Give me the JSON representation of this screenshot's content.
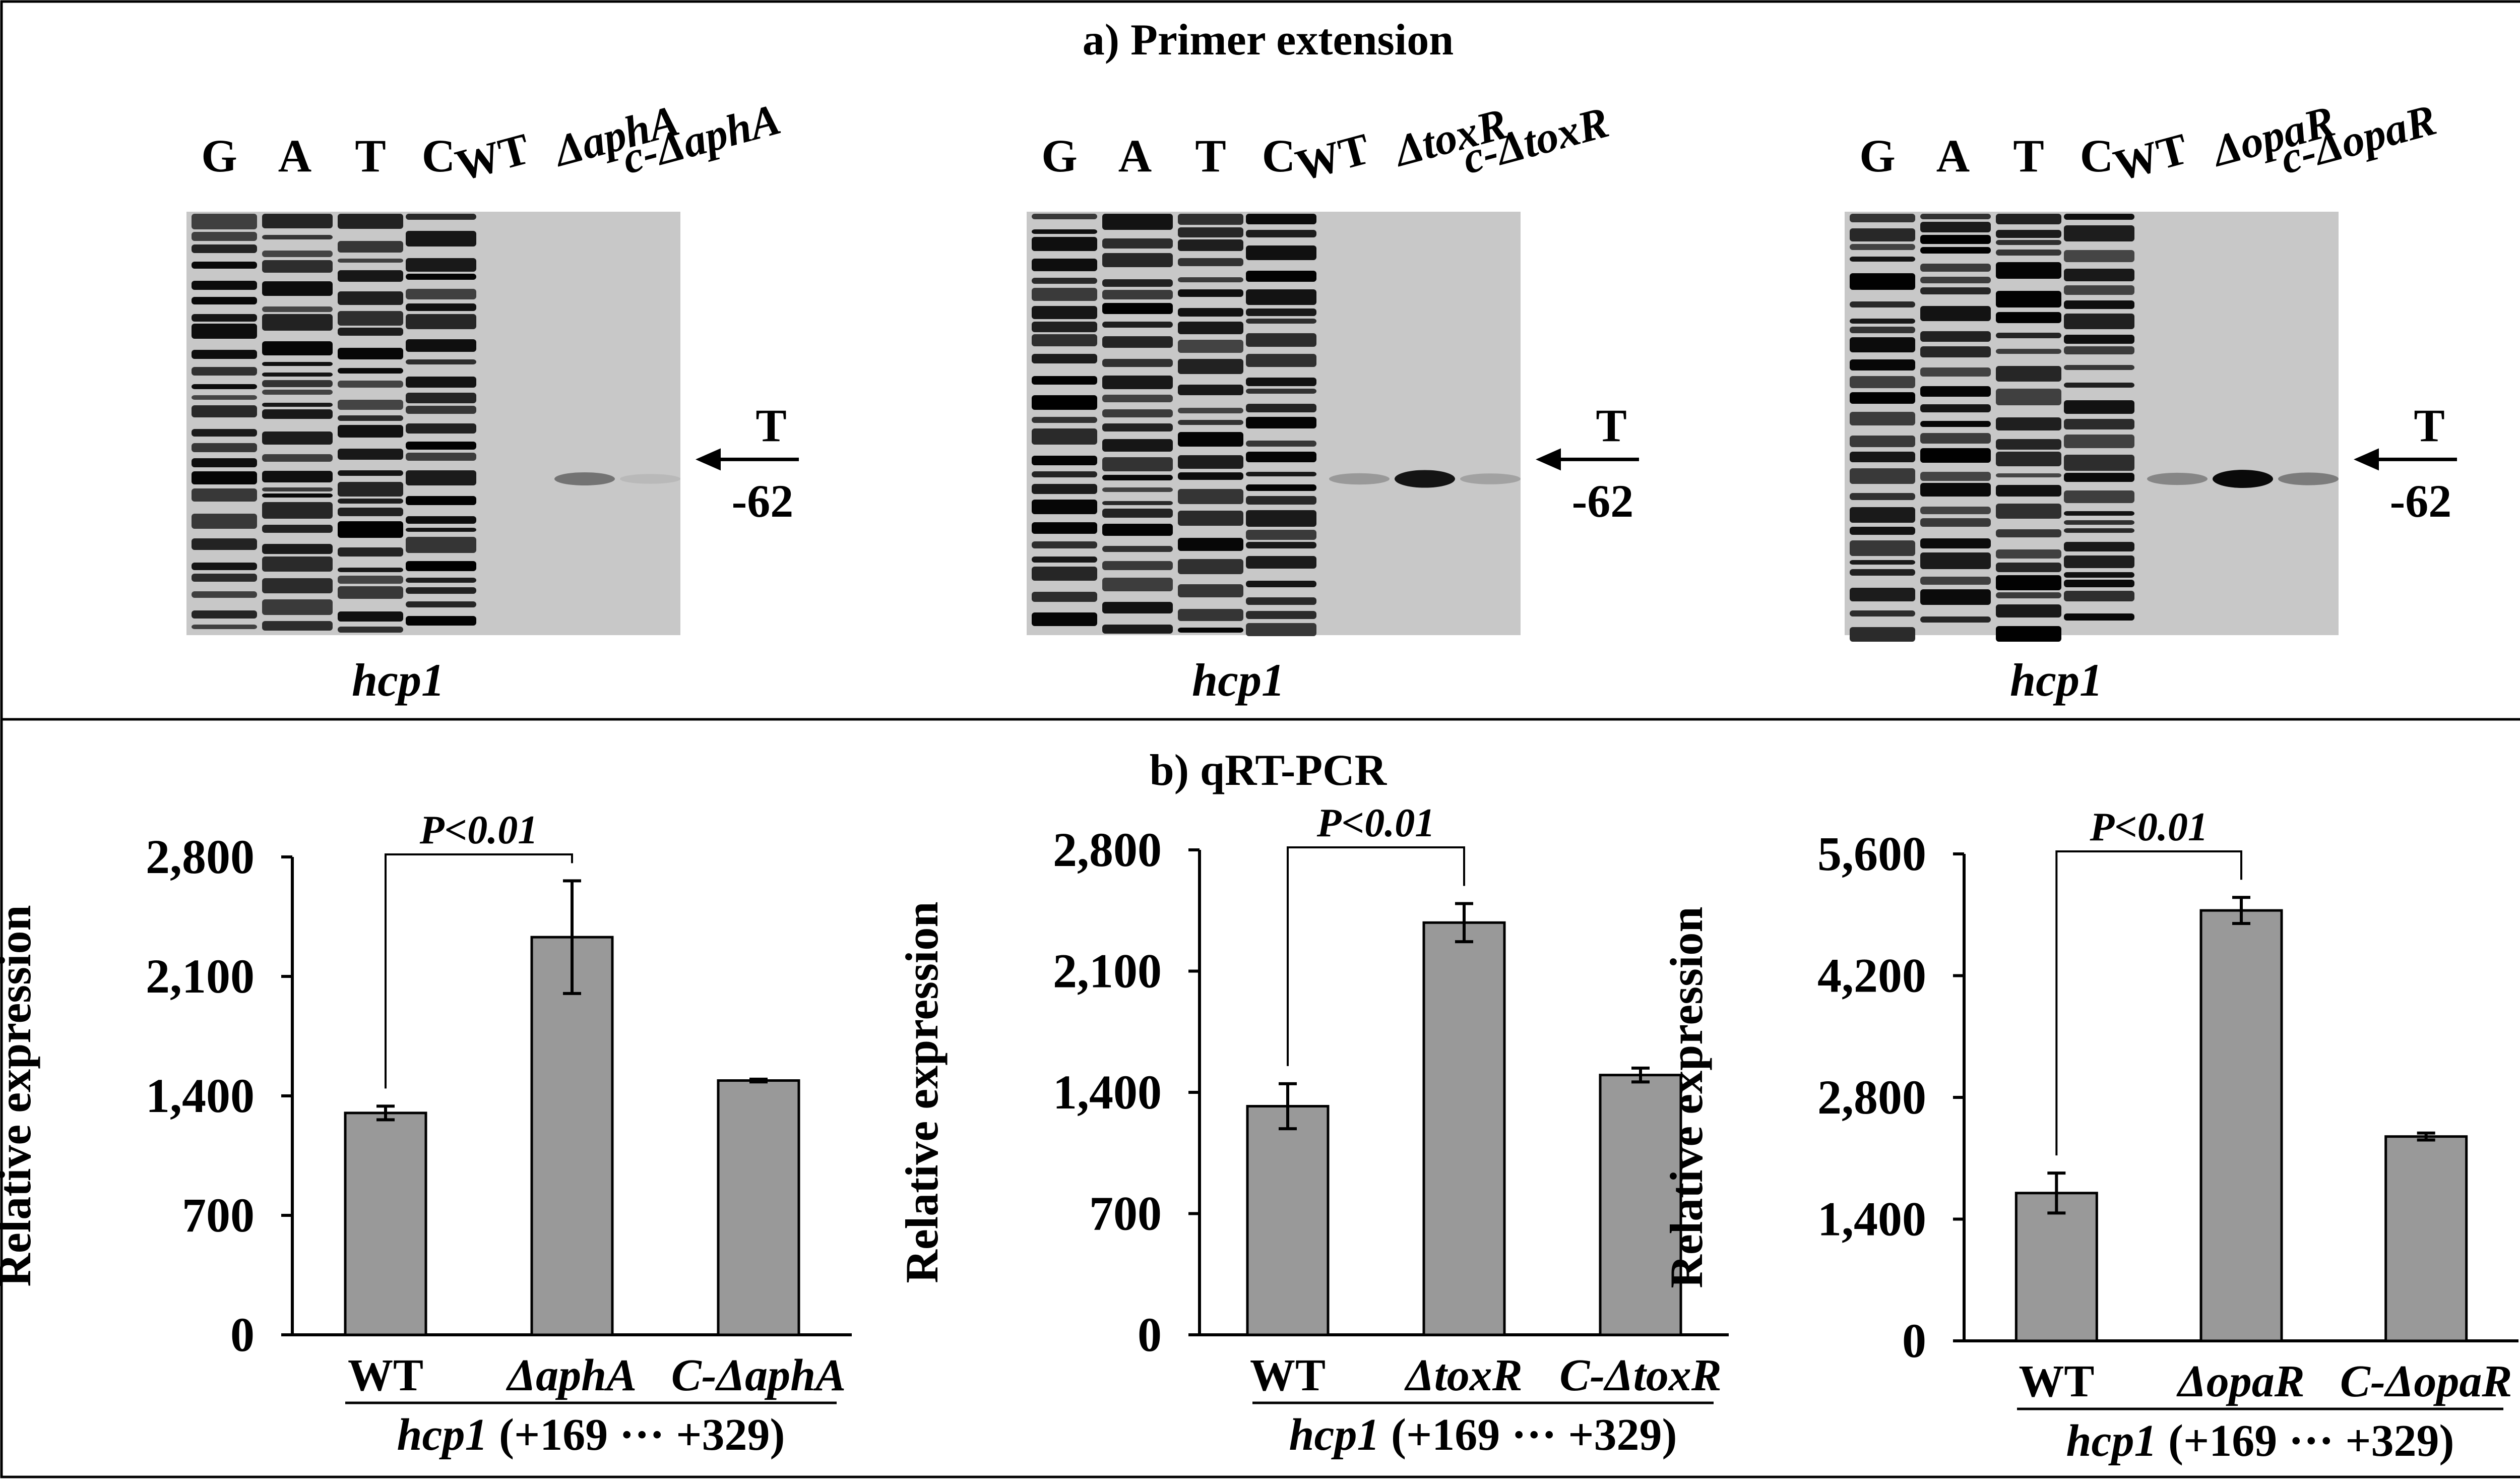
{
  "panel_a": {
    "title": "a) Primer extension",
    "gels": [
      {
        "lanes": [
          "G",
          "A",
          "T",
          "C"
        ],
        "wt": "WT",
        "mutant": "ΔaphA",
        "complement": "c-ΔaphA",
        "marker_base": "T",
        "marker_position": "-62",
        "gene": "hcp1",
        "bands": [
          0.0,
          0.45,
          0.08
        ]
      },
      {
        "lanes": [
          "G",
          "A",
          "T",
          "C"
        ],
        "wt": "WT",
        "mutant": "ΔtoxR",
        "complement": "c-ΔtoxR",
        "marker_base": "T",
        "marker_position": "-62",
        "gene": "hcp1",
        "bands": [
          0.25,
          0.95,
          0.2
        ]
      },
      {
        "lanes": [
          "G",
          "A",
          "T",
          "C"
        ],
        "wt": "WT",
        "mutant": "ΔopaR",
        "complement": "c-ΔopaR",
        "marker_base": "T",
        "marker_position": "-62",
        "gene": "hcp1",
        "bands": [
          0.35,
          1.0,
          0.4
        ]
      }
    ]
  },
  "panel_b": {
    "title": "b) qRT-PCR",
    "region_gene": "hcp1",
    "region_range": "(+169 ··· +329)"
  },
  "colors": {
    "bar": "#999999",
    "axis": "#000000",
    "gel_background": "#c8c8c8"
  },
  "chart_data": [
    {
      "type": "bar",
      "ylabel": "Relative expression",
      "categories": [
        "WT",
        "ΔaphA",
        "C-ΔaphA"
      ],
      "category_italic": [
        false,
        true,
        true
      ],
      "values": [
        1300,
        2330,
        1490
      ],
      "errors": [
        40,
        330,
        8
      ],
      "ylim": [
        0,
        2800
      ],
      "yticks": [
        "0",
        "700",
        "1,400",
        "2,100",
        "2,800"
      ],
      "significance": {
        "label": "P<0.01",
        "from": 0,
        "to": 1
      }
    },
    {
      "type": "bar",
      "ylabel": "Relative expression",
      "categories": [
        "WT",
        "ΔtoxR",
        "C-ΔtoxR"
      ],
      "category_italic": [
        false,
        true,
        true
      ],
      "values": [
        1320,
        2380,
        1500
      ],
      "errors": [
        130,
        110,
        40
      ],
      "ylim": [
        0,
        2800
      ],
      "yticks": [
        "0",
        "700",
        "1,400",
        "2,100",
        "2,800"
      ],
      "significance": {
        "label": "P<0.01",
        "from": 0,
        "to": 1
      }
    },
    {
      "type": "bar",
      "ylabel": "Relative expression",
      "categories": [
        "WT",
        "ΔopaR",
        "C-ΔopaR"
      ],
      "category_italic": [
        false,
        true,
        true
      ],
      "values": [
        1700,
        4950,
        2350
      ],
      "errors": [
        230,
        150,
        40
      ],
      "ylim": [
        0,
        5600
      ],
      "yticks": [
        "0",
        "1,400",
        "2,800",
        "4,200",
        "5,600"
      ],
      "significance": {
        "label": "P<0.01",
        "from": 0,
        "to": 1
      }
    }
  ]
}
